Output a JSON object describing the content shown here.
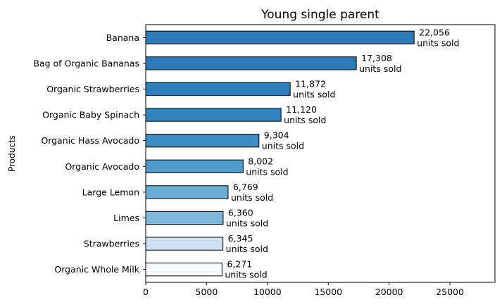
{
  "chart_data": {
    "type": "bar",
    "orientation": "horizontal",
    "title": "Young single parent",
    "xlabel": "",
    "ylabel": "Products",
    "xlim": [
      0,
      28700
    ],
    "xticks": [
      0,
      5000,
      10000,
      15000,
      20000,
      25000
    ],
    "xtick_labels": [
      "0",
      "5000",
      "10000",
      "15000",
      "20000",
      "25000"
    ],
    "grid": false,
    "legend": "none",
    "unit_suffix": "units sold",
    "categories": [
      "Banana",
      "Bag of Organic Bananas",
      "Organic Strawberries",
      "Organic Baby Spinach",
      "Organic Hass Avocado",
      "Organic Avocado",
      "Large Lemon",
      "Limes",
      "Strawberries",
      "Organic Whole Milk"
    ],
    "values": [
      22056,
      17308,
      11872,
      11120,
      9304,
      8002,
      6769,
      6360,
      6345,
      6271
    ],
    "value_labels": [
      "22,056",
      "17,308",
      "11,872",
      "11,120",
      "9,304",
      "8,002",
      "6,769",
      "6,360",
      "6,345",
      "6,271"
    ],
    "bar_colors": [
      "#2b7bba",
      "#2b7bba",
      "#2e7ebc",
      "#3282be",
      "#3d8dc4",
      "#4f9bcb",
      "#6aaed6",
      "#7db7da",
      "#cde0f1",
      "#f7fbff"
    ],
    "edge_color": "#000000"
  }
}
